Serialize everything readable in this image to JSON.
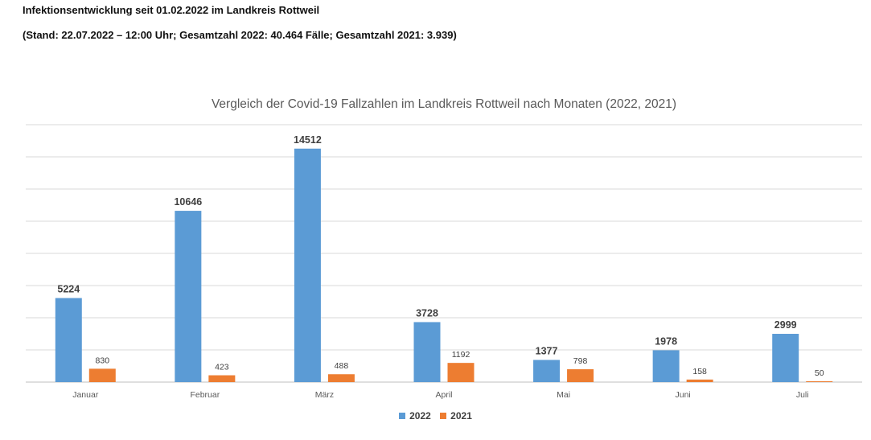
{
  "header": {
    "line1": "Infektionsentwicklung seit 01.02.2022 im Landkreis Rottweil",
    "line2": "(Stand: 22.07.2022 – 12:00 Uhr; Gesamtzahl 2022: 40.464 Fälle; Gesamtzahl 2021: 3.939)"
  },
  "chart_data": {
    "type": "bar",
    "title": "Vergleich der Covid-19 Fallzahlen im Landkreis Rottweil nach Monaten (2022, 2021)",
    "categories": [
      "Januar",
      "Februar",
      "März",
      "April",
      "Mai",
      "Juni",
      "Juli"
    ],
    "series": [
      {
        "name": "2022",
        "color": "#5b9bd5",
        "values": [
          5224,
          10646,
          14512,
          3728,
          1377,
          1978,
          2999
        ]
      },
      {
        "name": "2021",
        "color": "#ed7d31",
        "values": [
          830,
          423,
          488,
          1192,
          798,
          158,
          50
        ]
      }
    ],
    "ylim": [
      0,
      16000
    ],
    "grid": true,
    "legend": "bottom-center",
    "xlabel": "",
    "ylabel": ""
  }
}
